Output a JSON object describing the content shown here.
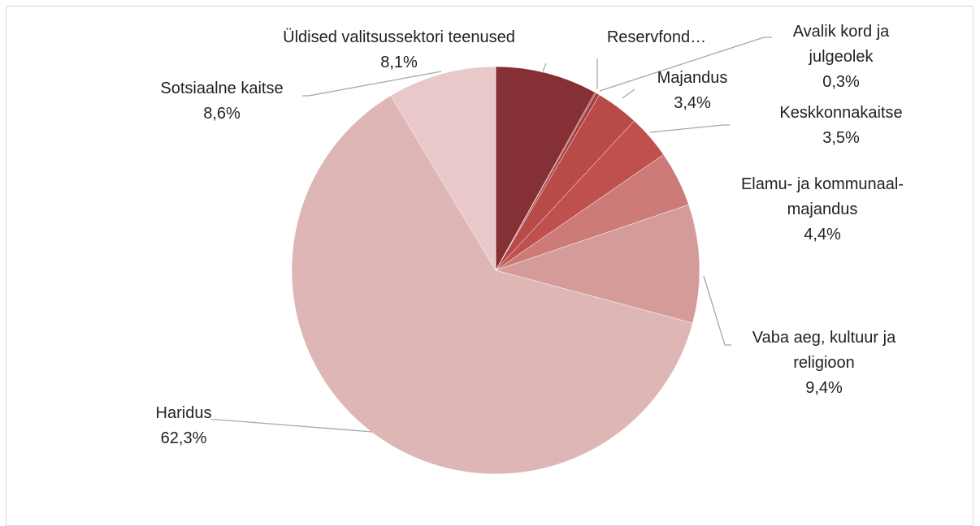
{
  "chart_data": {
    "type": "pie",
    "categories": [
      "Üldised valitsussektori teenused",
      "Reservfond…",
      "Avalik kord ja julgeolek",
      "Majandus",
      "Keskkonnakaitse",
      "Elamu- ja kommunaal-majandus",
      "Vaba aeg, kultuur ja religioon",
      "Haridus",
      "Sotsiaalne kaitse"
    ],
    "values": [
      8.1,
      0.1,
      0.3,
      3.4,
      3.5,
      4.4,
      9.4,
      62.3,
      8.6
    ],
    "value_labels": [
      "8,1%",
      null,
      "0,3%",
      "3,4%",
      "3,5%",
      "4,4%",
      "9,4%",
      "62,3%",
      "8,6%"
    ],
    "colors": [
      "#843034",
      "#9a3838",
      "#a63e3e",
      "#b84a48",
      "#c0504d",
      "#cd7b79",
      "#d59b99",
      "#dfb6b6",
      "#e8c8c8"
    ]
  }
}
